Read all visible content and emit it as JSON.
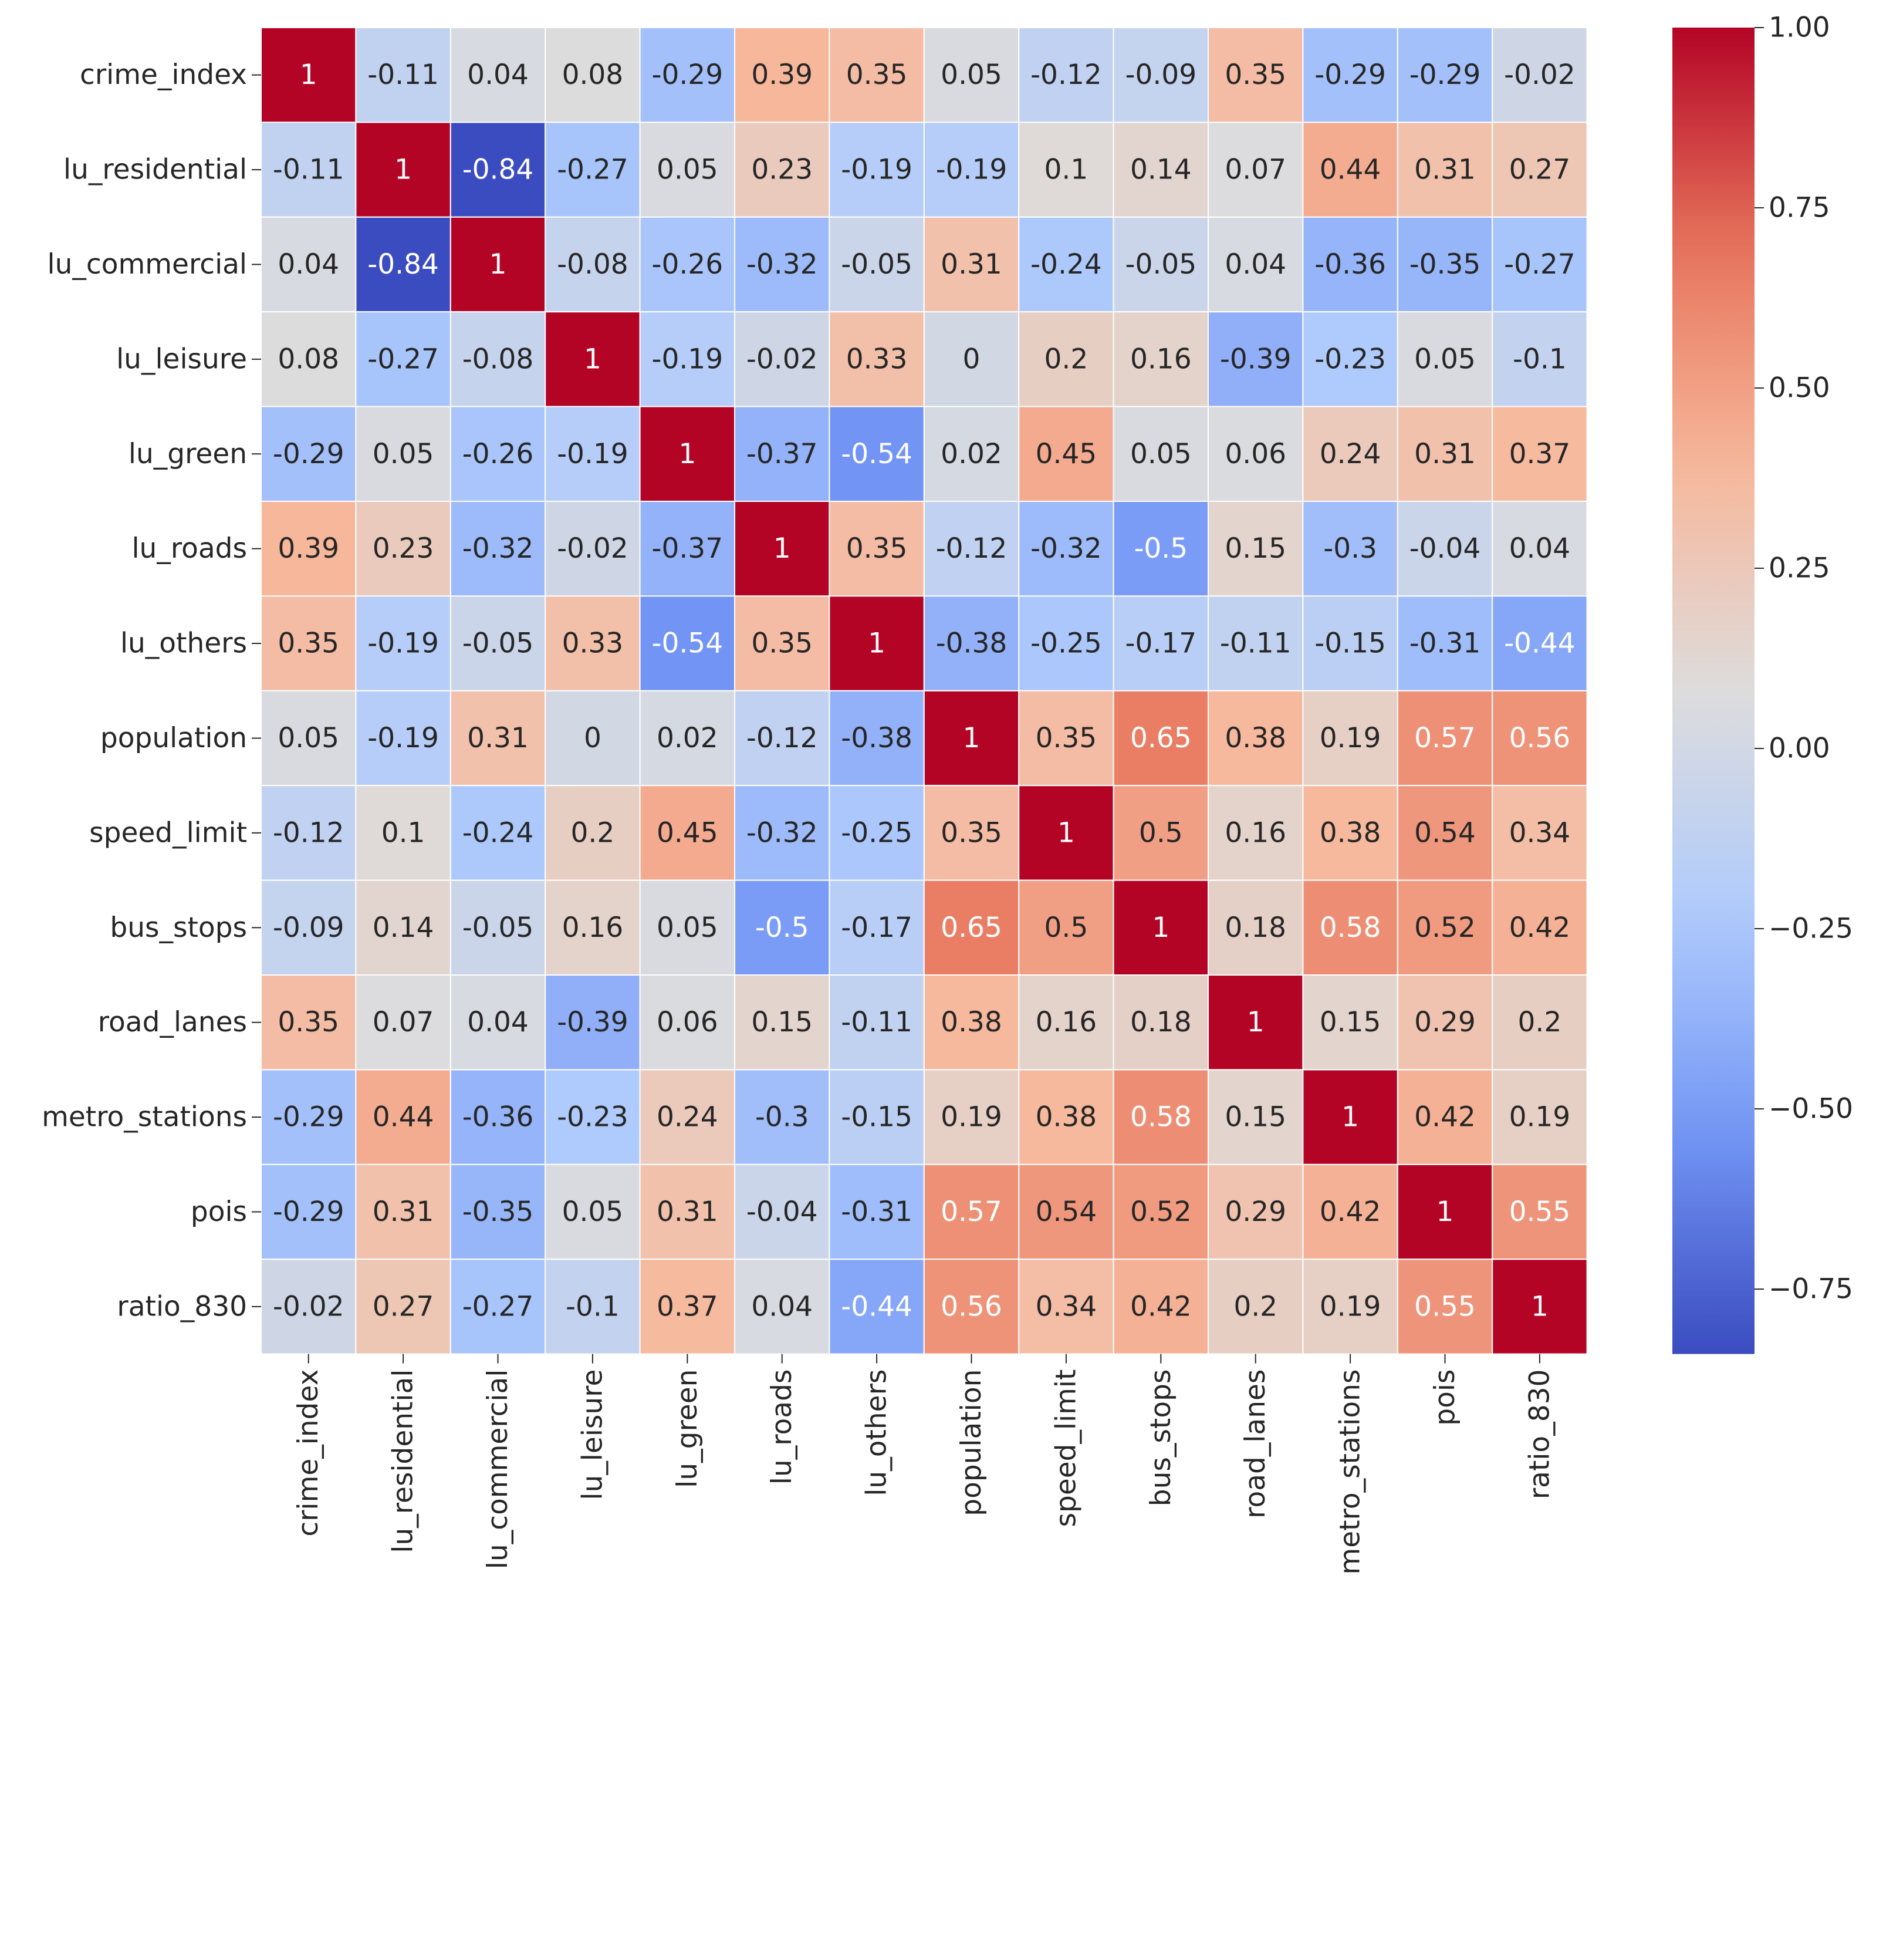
{
  "chart_data": {
    "type": "heatmap",
    "title": "",
    "xlabel": "",
    "ylabel": "",
    "variables": [
      "crime_index",
      "lu_residential",
      "lu_commercial",
      "lu_leisure",
      "lu_green",
      "lu_roads",
      "lu_others",
      "population",
      "speed_limit",
      "bus_stops",
      "road_lanes",
      "metro_stations",
      "pois",
      "ratio_830"
    ],
    "matrix": [
      [
        1,
        -0.11,
        0.04,
        0.08,
        -0.29,
        0.39,
        0.35,
        0.05,
        -0.12,
        -0.09,
        0.35,
        -0.29,
        -0.29,
        -0.02
      ],
      [
        -0.11,
        1,
        -0.84,
        -0.27,
        0.05,
        0.23,
        -0.19,
        -0.19,
        0.1,
        0.14,
        0.07,
        0.44,
        0.31,
        0.27
      ],
      [
        0.04,
        -0.84,
        1,
        -0.08,
        -0.26,
        -0.32,
        -0.05,
        0.31,
        -0.24,
        -0.05,
        0.04,
        -0.36,
        -0.35,
        -0.27
      ],
      [
        0.08,
        -0.27,
        -0.08,
        1,
        -0.19,
        -0.02,
        0.33,
        0,
        0.2,
        0.16,
        -0.39,
        -0.23,
        0.05,
        -0.1
      ],
      [
        -0.29,
        0.05,
        -0.26,
        -0.19,
        1,
        -0.37,
        -0.54,
        0.02,
        0.45,
        0.05,
        0.06,
        0.24,
        0.31,
        0.37
      ],
      [
        0.39,
        0.23,
        -0.32,
        -0.02,
        -0.37,
        1,
        0.35,
        -0.12,
        -0.32,
        -0.5,
        0.15,
        -0.3,
        -0.04,
        0.04
      ],
      [
        0.35,
        -0.19,
        -0.05,
        0.33,
        -0.54,
        0.35,
        1,
        -0.38,
        -0.25,
        -0.17,
        -0.11,
        -0.15,
        -0.31,
        -0.44
      ],
      [
        0.05,
        -0.19,
        0.31,
        0,
        0.02,
        -0.12,
        -0.38,
        1,
        0.35,
        0.65,
        0.38,
        0.19,
        0.57,
        0.56
      ],
      [
        -0.12,
        0.1,
        -0.24,
        0.2,
        0.45,
        -0.32,
        -0.25,
        0.35,
        1,
        0.5,
        0.16,
        0.38,
        0.54,
        0.34
      ],
      [
        -0.09,
        0.14,
        -0.05,
        0.16,
        0.05,
        -0.5,
        -0.17,
        0.65,
        0.5,
        1,
        0.18,
        0.58,
        0.52,
        0.42
      ],
      [
        0.35,
        0.07,
        0.04,
        -0.39,
        0.06,
        0.15,
        -0.11,
        0.38,
        0.16,
        0.18,
        1,
        0.15,
        0.29,
        0.2
      ],
      [
        -0.29,
        0.44,
        -0.36,
        -0.23,
        0.24,
        -0.3,
        -0.15,
        0.19,
        0.38,
        0.58,
        0.15,
        1,
        0.42,
        0.19
      ],
      [
        -0.29,
        0.31,
        -0.35,
        0.05,
        0.31,
        -0.04,
        -0.31,
        0.57,
        0.54,
        0.52,
        0.29,
        0.42,
        1,
        0.55
      ],
      [
        -0.02,
        0.27,
        -0.27,
        -0.1,
        0.37,
        0.04,
        -0.44,
        0.56,
        0.34,
        0.42,
        0.2,
        0.19,
        0.55,
        1
      ]
    ],
    "colormap": "coolwarm",
    "vmin": -0.84,
    "vmax": 1.0,
    "colorbar": {
      "ticks": [
        1.0,
        0.75,
        0.5,
        0.25,
        0.0,
        -0.25,
        -0.5,
        -0.75
      ],
      "tick_labels": [
        "1.00",
        "0.75",
        "0.50",
        "0.25",
        "0.00",
        "−0.25",
        "−0.50",
        "−0.75"
      ],
      "placement": "right"
    },
    "grid": true,
    "annotations": true
  },
  "colors": {
    "cmap_stops": [
      "#3b4cc0",
      "#7396f5",
      "#b0cbfc",
      "#dddcdc",
      "#f7b89c",
      "#e7755c",
      "#b40426"
    ],
    "text_dark": "#262626",
    "text_light": "#ffffff",
    "cell_border": "#ffffff"
  }
}
